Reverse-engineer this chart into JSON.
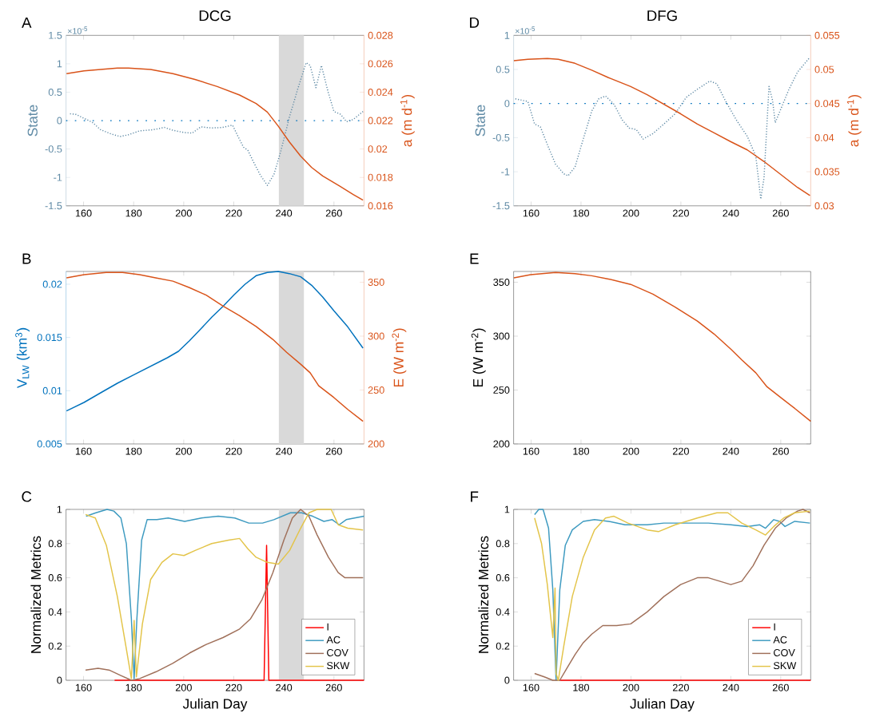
{
  "chart_data": [
    {
      "type": "line",
      "title": "DCG",
      "ylabel": "State",
      "y2label": "a (m d$^{-1}$)",
      "annotations": [
        "A",
        "×10$^{-5}$"
      ],
      "xlim": [
        153,
        272
      ],
      "xticks": [
        160,
        180,
        200,
        220,
        240,
        260
      ],
      "ylim": [
        -1.5,
        1.5
      ],
      "yticks": [
        -1.5,
        -1,
        -0.5,
        0,
        0.5,
        1,
        1.5
      ],
      "y2lim": [
        0.016,
        0.028
      ],
      "y2ticks": [
        0.016,
        0.018,
        0.02,
        0.022,
        0.024,
        0.026,
        0.028
      ],
      "bands": [
        {
          "axis": "x",
          "from": 238,
          "to": 248,
          "color": "#d9d9d9"
        }
      ],
      "ref_lines": [
        {
          "axis": "y",
          "value": 0,
          "color": "#0072bd",
          "line_style": "dotted"
        }
      ],
      "series": [
        {
          "color": "#5f8aa5",
          "line_style": "dotted",
          "x": [
            154.6,
            156.9,
            160.2,
            163.5,
            166.8,
            171.3,
            174.6,
            177.9,
            182.4,
            187.9,
            192.3,
            195.7,
            200.1,
            203.4,
            206.8,
            211.2,
            215.6,
            219.5,
            221.7,
            223.9,
            225.6,
            227.8,
            230.6,
            233.4,
            236.1,
            238.9,
            242.2,
            245.5,
            248.9,
            250.5,
            252.8,
            255.0,
            257.7,
            260.0,
            262.7,
            265.0,
            267.7,
            271.6
          ],
          "values": [
            0.12,
            0.11,
            0.04,
            -0.03,
            -0.16,
            -0.24,
            -0.28,
            -0.25,
            -0.18,
            -0.16,
            -0.12,
            -0.17,
            -0.21,
            -0.22,
            -0.11,
            -0.13,
            -0.12,
            -0.08,
            -0.28,
            -0.47,
            -0.52,
            -0.72,
            -0.96,
            -1.14,
            -0.94,
            -0.52,
            0.06,
            0.55,
            1.02,
            0.97,
            0.58,
            0.97,
            0.5,
            0.16,
            0.11,
            -0.02,
            0.02,
            0.16
          ]
        },
        {
          "color": "#d95319",
          "axis": "y2",
          "x": [
            153.2,
            160.2,
            166.8,
            173.5,
            177.9,
            186.8,
            195.7,
            204.5,
            213.4,
            222.3,
            228.9,
            233.4,
            237.8,
            242.2,
            246.7,
            251.1,
            255.5,
            262.2,
            267.7,
            271.6
          ],
          "values": [
            0.0253,
            0.0255,
            0.0256,
            0.0257,
            0.0257,
            0.0256,
            0.0253,
            0.0249,
            0.0244,
            0.0238,
            0.0232,
            0.0226,
            0.0216,
            0.0205,
            0.0195,
            0.0187,
            0.0181,
            0.0174,
            0.0168,
            0.0164
          ]
        }
      ]
    },
    {
      "type": "line",
      "title": "DFG",
      "ylabel": "State",
      "y2label": "a (m d$^{-1}$)",
      "annotations": [
        "D",
        "×10$^{-5}$"
      ],
      "xlim": [
        153,
        272
      ],
      "xticks": [
        160,
        180,
        200,
        220,
        240,
        260
      ],
      "ylim": [
        -1.5,
        1
      ],
      "yticks": [
        -1.5,
        -1,
        -0.5,
        0,
        0.5,
        1
      ],
      "y2lim": [
        0.03,
        0.055
      ],
      "y2ticks": [
        0.03,
        0.035,
        0.04,
        0.045,
        0.05,
        0.055
      ],
      "ref_lines": [
        {
          "axis": "y",
          "value": 0,
          "color": "#0072bd",
          "line_style": "dotted"
        }
      ],
      "series": [
        {
          "color": "#5f8aa5",
          "line_style": "dotted",
          "x": [
            153.7,
            158.7,
            161.4,
            163.7,
            166.5,
            169.8,
            173.1,
            174.8,
            177.6,
            180.9,
            184.3,
            187.1,
            189.8,
            193.2,
            196.5,
            199.3,
            202.1,
            204.9,
            208.8,
            213.2,
            217.7,
            222.1,
            226.6,
            231.6,
            234.4,
            237.7,
            242.2,
            246.6,
            250.0,
            252.0,
            253.3,
            255.3,
            256.7,
            257.8,
            260.6,
            263.3,
            266.7,
            271.7
          ],
          "values": [
            0.07,
            0.03,
            -0.3,
            -0.34,
            -0.6,
            -0.89,
            -1.03,
            -1.06,
            -0.93,
            -0.52,
            -0.11,
            0.07,
            0.11,
            -0.01,
            -0.24,
            -0.36,
            -0.38,
            -0.52,
            -0.44,
            -0.3,
            -0.15,
            0.09,
            0.21,
            0.33,
            0.29,
            0.05,
            -0.24,
            -0.48,
            -0.77,
            -1.4,
            -1.09,
            0.25,
            0.05,
            -0.28,
            -0.03,
            0.21,
            0.46,
            0.68
          ]
        },
        {
          "color": "#d95319",
          "axis": "y2",
          "x": [
            153.1,
            158.7,
            166.5,
            170.9,
            177.6,
            184.3,
            191.0,
            199.9,
            206.5,
            213.2,
            219.9,
            226.6,
            233.3,
            240.0,
            246.6,
            253.3,
            260.0,
            266.7,
            271.7
          ],
          "values": [
            0.0513,
            0.0515,
            0.0516,
            0.0515,
            0.0509,
            0.0499,
            0.0488,
            0.0475,
            0.0463,
            0.0449,
            0.0435,
            0.042,
            0.0407,
            0.0394,
            0.0382,
            0.0365,
            0.0346,
            0.0327,
            0.0315
          ]
        }
      ]
    },
    {
      "type": "line",
      "ylabel": "V$_{LW}$ (km$^{3}$)",
      "y2label": "E (W m$^{-2}$)",
      "annotations": [
        "B"
      ],
      "xlim": [
        153,
        272
      ],
      "xticks": [
        160,
        180,
        200,
        220,
        240,
        260
      ],
      "ylim": [
        0.005,
        0.0212
      ],
      "yticks": [
        0.005,
        0.01,
        0.015,
        0.02
      ],
      "y2lim": [
        200,
        360
      ],
      "y2ticks": [
        200,
        250,
        300,
        350
      ],
      "bands": [
        {
          "axis": "x",
          "from": 238,
          "to": 248,
          "color": "#d9d9d9"
        }
      ],
      "series": [
        {
          "color": "#0072bd",
          "x": [
            153.2,
            160.2,
            166.8,
            173.5,
            180.1,
            186.8,
            193.5,
            197.9,
            202.3,
            206.8,
            211.2,
            215.6,
            220.1,
            224.5,
            228.9,
            233.4,
            237.8,
            242.2,
            246.7,
            251.1,
            255.5,
            260.0,
            265.5,
            271.6
          ],
          "values": [
            0.0081,
            0.0089,
            0.0098,
            0.0107,
            0.0115,
            0.0123,
            0.0131,
            0.0137,
            0.0147,
            0.0158,
            0.0169,
            0.0179,
            0.019,
            0.02,
            0.0208,
            0.0211,
            0.0212,
            0.021,
            0.0207,
            0.0199,
            0.0188,
            0.0175,
            0.016,
            0.014
          ]
        },
        {
          "color": "#d95319",
          "axis": "y2",
          "x": [
            153.2,
            160.2,
            169.0,
            175.6,
            182.4,
            188.8,
            195.7,
            202.3,
            209.0,
            215.6,
            222.3,
            228.9,
            235.6,
            241.1,
            246.7,
            250.5,
            253.9,
            260.0,
            265.5,
            271.6
          ],
          "values": [
            354,
            357,
            359,
            359,
            357,
            354,
            351,
            345,
            338,
            328,
            319,
            309,
            297,
            285,
            274,
            266,
            254,
            243,
            232,
            221
          ]
        }
      ]
    },
    {
      "type": "line",
      "ylabel": "E (W m$^{-2}$)",
      "annotations": [
        "E"
      ],
      "xlim": [
        153,
        272
      ],
      "xticks": [
        160,
        180,
        200,
        220,
        240,
        260
      ],
      "ylim": [
        200,
        360
      ],
      "yticks": [
        200,
        250,
        300,
        350
      ],
      "series": [
        {
          "color": "#d95319",
          "x": [
            153.1,
            159.8,
            169.8,
            177.6,
            184.3,
            191.0,
            199.9,
            208.8,
            217.7,
            226.6,
            233.3,
            240.0,
            244.4,
            250.0,
            254.5,
            260.0,
            265.6,
            272.0
          ],
          "values": [
            354,
            357,
            359,
            358,
            356,
            353,
            348,
            339,
            327,
            314,
            302,
            288,
            278,
            266,
            253,
            243,
            233,
            221
          ]
        }
      ]
    },
    {
      "type": "line",
      "xlabel": "Julian Day",
      "ylabel": "Normalized Metrics",
      "annotations": [
        "C"
      ],
      "xlim": [
        153,
        272
      ],
      "xticks": [
        160,
        180,
        200,
        220,
        240,
        260
      ],
      "ylim": [
        0,
        1
      ],
      "yticks": [
        0,
        0.2,
        0.4,
        0.6,
        0.8,
        1
      ],
      "legend": "bottom right",
      "bands": [
        {
          "axis": "x",
          "from": 238,
          "to": 248,
          "color": "#d9d9d9"
        }
      ],
      "series": [
        {
          "name": "I",
          "color": "#ff0000",
          "x": [
            172.4,
            232.1,
            233.1,
            234.0,
            272
          ],
          "values": [
            0,
            0,
            0.79,
            0,
            0
          ]
        },
        {
          "name": "AC",
          "color": "#3d9ac0",
          "x": [
            161.0,
            164.9,
            169.4,
            172.1,
            174.9,
            177.1,
            179.1,
            180.2,
            181.3,
            183.2,
            185.4,
            189.3,
            193.8,
            200.4,
            207.1,
            213.8,
            220.4,
            226.0,
            231.5,
            236.0,
            242.6,
            247.1,
            251.5,
            256.0,
            259.3,
            262.1,
            264.9,
            272.0
          ],
          "values": [
            0.96,
            0.98,
            1.0,
            0.99,
            0.95,
            0.8,
            0.36,
            0.01,
            0.36,
            0.82,
            0.94,
            0.94,
            0.95,
            0.93,
            0.95,
            0.96,
            0.95,
            0.92,
            0.92,
            0.94,
            0.98,
            0.98,
            0.96,
            0.93,
            0.94,
            0.91,
            0.94,
            0.96
          ]
        },
        {
          "name": "COV",
          "color": "#a0705a",
          "x": [
            160.8,
            165.8,
            170.2,
            174.6,
            179.1,
            182.4,
            189.0,
            195.7,
            202.4,
            209.0,
            215.7,
            222.3,
            226.7,
            231.2,
            235.6,
            240.0,
            243.4,
            246.7,
            250.0,
            253.3,
            257.8,
            261.7,
            264.4,
            271.6
          ],
          "values": [
            0.06,
            0.07,
            0.06,
            0.03,
            0.0,
            0.01,
            0.05,
            0.1,
            0.16,
            0.21,
            0.25,
            0.3,
            0.36,
            0.47,
            0.63,
            0.82,
            0.95,
            1.0,
            0.96,
            0.85,
            0.72,
            0.63,
            0.6,
            0.6
          ]
        },
        {
          "name": "SKW",
          "color": "#e3c449",
          "x": [
            160.8,
            164.7,
            169.1,
            173.5,
            176.9,
            179.1,
            180.2,
            181.1,
            183.5,
            186.8,
            191.3,
            195.7,
            200.1,
            204.6,
            211.2,
            217.9,
            222.3,
            225.6,
            228.9,
            233.4,
            237.8,
            242.3,
            246.7,
            250.0,
            253.3,
            258.9,
            261.7,
            265.5,
            271.6
          ],
          "values": [
            0.97,
            0.95,
            0.79,
            0.49,
            0.2,
            0.01,
            0.35,
            0.02,
            0.33,
            0.59,
            0.69,
            0.74,
            0.73,
            0.76,
            0.8,
            0.82,
            0.83,
            0.77,
            0.72,
            0.69,
            0.68,
            0.76,
            0.89,
            0.98,
            1.0,
            1.0,
            0.91,
            0.89,
            0.88
          ]
        }
      ]
    },
    {
      "type": "line",
      "xlabel": "Julian Day",
      "ylabel": "Normalized Metrics",
      "annotations": [
        "F"
      ],
      "xlim": [
        153,
        272
      ],
      "xticks": [
        160,
        180,
        200,
        220,
        240,
        260
      ],
      "ylim": [
        0,
        1
      ],
      "yticks": [
        0,
        0.2,
        0.4,
        0.6,
        0.8,
        1
      ],
      "legend": "bottom right",
      "series": [
        {
          "name": "I",
          "color": "#ff0000",
          "x": [
            171.5,
            272
          ],
          "values": [
            0,
            0
          ]
        },
        {
          "name": "AC",
          "color": "#3d9ac0",
          "x": [
            161.4,
            163.1,
            164.8,
            167.0,
            168.7,
            170.0,
            171.5,
            173.7,
            176.5,
            180.9,
            185.4,
            191.0,
            197.6,
            206.5,
            213.2,
            222.1,
            231.0,
            240.0,
            246.6,
            251.6,
            253.9,
            257.2,
            259.5,
            261.7,
            265.6,
            271.7
          ],
          "values": [
            0.97,
            1.0,
            1.0,
            0.89,
            0.53,
            0.0,
            0.53,
            0.79,
            0.88,
            0.93,
            0.94,
            0.93,
            0.91,
            0.91,
            0.92,
            0.92,
            0.92,
            0.91,
            0.9,
            0.91,
            0.89,
            0.94,
            0.93,
            0.9,
            0.93,
            0.92
          ]
        },
        {
          "name": "COV",
          "color": "#a0705a",
          "x": [
            161.4,
            165.3,
            168.7,
            171.5,
            174.3,
            177.6,
            180.9,
            184.3,
            188.7,
            194.3,
            199.9,
            206.5,
            213.2,
            219.9,
            226.6,
            231.0,
            235.5,
            240.0,
            244.4,
            248.9,
            253.3,
            257.8,
            262.2,
            266.7,
            268.9,
            271.7
          ],
          "values": [
            0.04,
            0.02,
            0.0,
            0.0,
            0.07,
            0.15,
            0.22,
            0.27,
            0.32,
            0.32,
            0.33,
            0.4,
            0.49,
            0.56,
            0.6,
            0.6,
            0.58,
            0.56,
            0.58,
            0.67,
            0.79,
            0.89,
            0.95,
            0.99,
            1.0,
            0.98
          ]
        },
        {
          "name": "SKW",
          "color": "#e3c449",
          "x": [
            161.4,
            164.2,
            166.5,
            168.7,
            169.6,
            170.0,
            170.9,
            173.1,
            176.5,
            180.9,
            185.4,
            189.8,
            193.2,
            198.8,
            206.5,
            211.0,
            217.7,
            226.6,
            234.4,
            238.8,
            244.4,
            250.0,
            253.9,
            257.2,
            261.2,
            265.6,
            271.7
          ],
          "values": [
            0.95,
            0.8,
            0.56,
            0.25,
            0.54,
            0.04,
            0.0,
            0.2,
            0.49,
            0.72,
            0.88,
            0.95,
            0.96,
            0.92,
            0.88,
            0.87,
            0.91,
            0.95,
            0.98,
            0.98,
            0.92,
            0.88,
            0.85,
            0.9,
            0.95,
            0.98,
            0.99
          ]
        }
      ]
    }
  ]
}
